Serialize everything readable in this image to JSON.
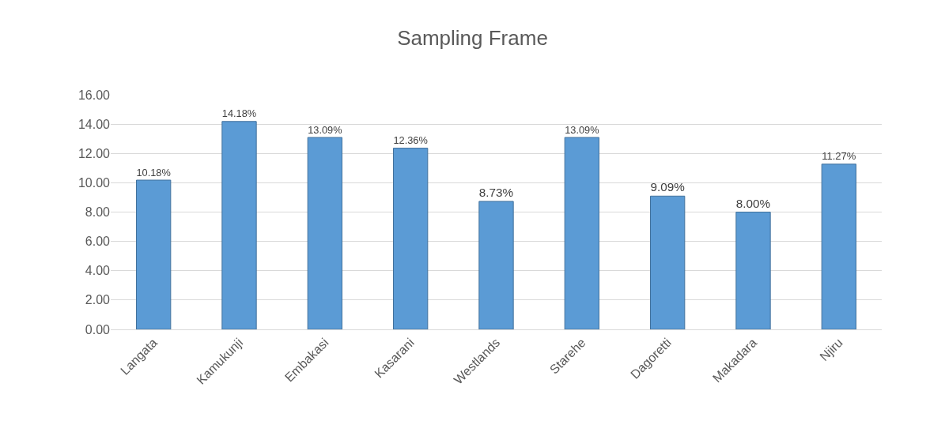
{
  "chart_data": {
    "type": "bar",
    "title": "Sampling Frame",
    "categories": [
      "Langata",
      "Kamukunji",
      "Embakasi",
      "Kasarani",
      "Westlands",
      "Starehe",
      "Dagoretti",
      "Makadara",
      "Njiru"
    ],
    "values": [
      10.18,
      14.18,
      13.09,
      12.36,
      8.73,
      13.09,
      9.09,
      8.0,
      11.27
    ],
    "value_labels": [
      "10.18%",
      "14.18%",
      "13.09%",
      "12.36%",
      "8.73%",
      "13.09%",
      "9.09%",
      "8.00%",
      "11.27%"
    ],
    "color": "#5b9bd5",
    "ylim": [
      0,
      16
    ],
    "yticks": [
      {
        "value": 0,
        "label": "0.00"
      },
      {
        "value": 2,
        "label": "2.00"
      },
      {
        "value": 4,
        "label": "4.00"
      },
      {
        "value": 6,
        "label": "6.00"
      },
      {
        "value": 8,
        "label": "8.00"
      },
      {
        "value": 10,
        "label": "10.00"
      },
      {
        "value": 12,
        "label": "12.00"
      },
      {
        "value": 14,
        "label": "14.00"
      },
      {
        "value": 16,
        "label": "16.00"
      }
    ],
    "grid": "y"
  }
}
